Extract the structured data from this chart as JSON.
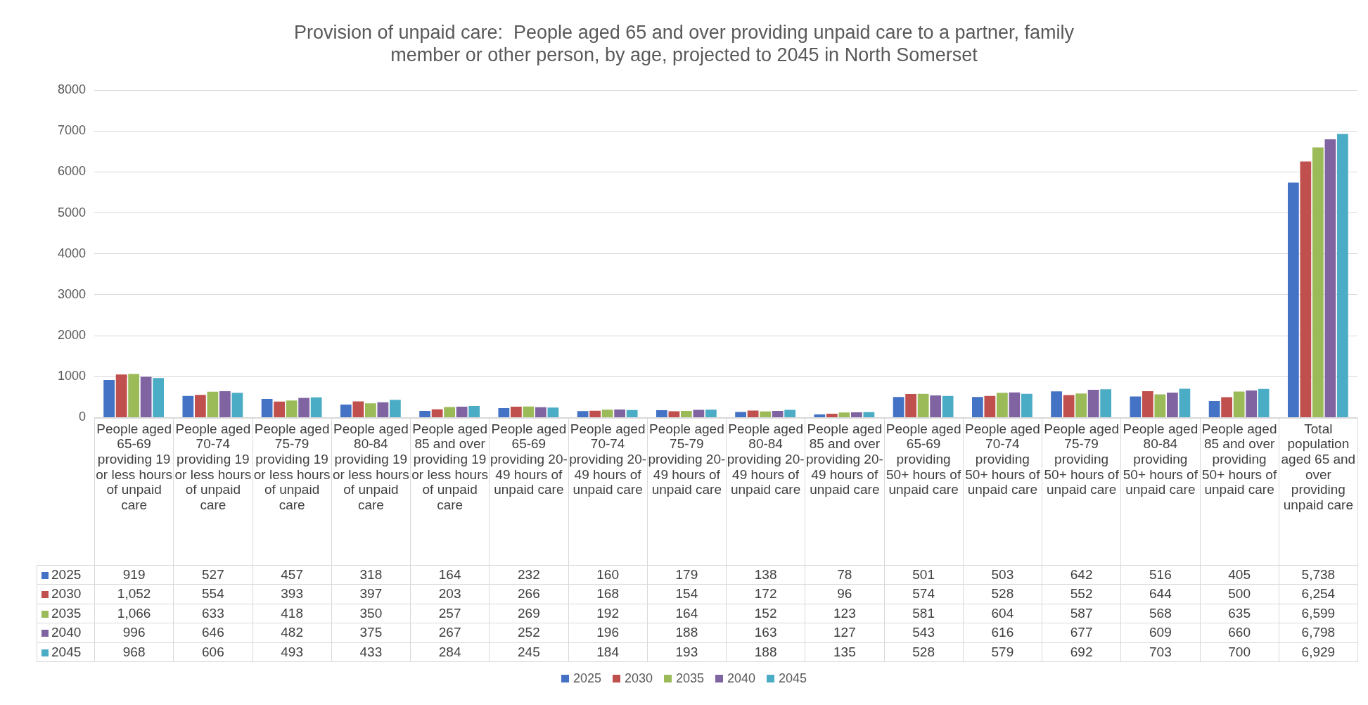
{
  "chart_data": {
    "type": "bar",
    "title": "Provision of unpaid care:  People aged 65 and over providing unpaid care to a partner, family member or other person, by age, projected to 2045 in North Somerset",
    "categories": [
      "People aged 65-69 providing 19 or less hours of unpaid care",
      "People aged 70-74 providing 19 or less hours of unpaid care",
      "People aged 75-79 providing 19 or less hours of unpaid care",
      "People aged 80-84 providing 19 or less hours of unpaid care",
      "People aged 85 and over providing 19 or less hours of unpaid care",
      "People aged 65-69 providing 20-49 hours of unpaid care",
      "People aged 70-74 providing 20-49 hours of unpaid care",
      "People aged 75-79 providing 20-49 hours of unpaid care",
      "People aged 80-84 providing 20-49 hours of unpaid care",
      "People aged 85 and over providing 20-49 hours of unpaid care",
      "People aged 65-69 providing 50+ hours of unpaid care",
      "People aged 70-74 providing 50+ hours of unpaid care",
      "People aged 75-79 providing 50+ hours of unpaid care",
      "People aged 80-84 providing 50+ hours of unpaid care",
      "People aged 85 and over providing 50+ hours of unpaid care",
      "Total population aged 65 and over providing unpaid care"
    ],
    "series": [
      {
        "name": "2025",
        "color": "#4472c4",
        "values": [
          919,
          527,
          457,
          318,
          164,
          232,
          160,
          179,
          138,
          78,
          501,
          503,
          642,
          516,
          405,
          5738
        ],
        "value_labels": [
          "919",
          "527",
          "457",
          "318",
          "164",
          "232",
          "160",
          "179",
          "138",
          "78",
          "501",
          "503",
          "642",
          "516",
          "405",
          "5,738"
        ]
      },
      {
        "name": "2030",
        "color": "#c0504d",
        "values": [
          1052,
          554,
          393,
          397,
          203,
          266,
          168,
          154,
          172,
          96,
          574,
          528,
          552,
          644,
          500,
          6254
        ],
        "value_labels": [
          "1,052",
          "554",
          "393",
          "397",
          "203",
          "266",
          "168",
          "154",
          "172",
          "96",
          "574",
          "528",
          "552",
          "644",
          "500",
          "6,254"
        ]
      },
      {
        "name": "2035",
        "color": "#9bbb59",
        "values": [
          1066,
          633,
          418,
          350,
          257,
          269,
          192,
          164,
          152,
          123,
          581,
          604,
          587,
          568,
          635,
          6599
        ],
        "value_labels": [
          "1,066",
          "633",
          "418",
          "350",
          "257",
          "269",
          "192",
          "164",
          "152",
          "123",
          "581",
          "604",
          "587",
          "568",
          "635",
          "6,599"
        ]
      },
      {
        "name": "2040",
        "color": "#8064a2",
        "values": [
          996,
          646,
          482,
          375,
          267,
          252,
          196,
          188,
          163,
          127,
          543,
          616,
          677,
          609,
          660,
          6798
        ],
        "value_labels": [
          "996",
          "646",
          "482",
          "375",
          "267",
          "252",
          "196",
          "188",
          "163",
          "127",
          "543",
          "616",
          "677",
          "609",
          "660",
          "6,798"
        ]
      },
      {
        "name": "2045",
        "color": "#4bacc6",
        "values": [
          968,
          606,
          493,
          433,
          284,
          245,
          184,
          193,
          188,
          135,
          528,
          579,
          692,
          703,
          700,
          6929
        ],
        "value_labels": [
          "968",
          "606",
          "493",
          "433",
          "284",
          "245",
          "184",
          "193",
          "188",
          "135",
          "528",
          "579",
          "692",
          "703",
          "700",
          "6,929"
        ]
      }
    ],
    "ylim": [
      0,
      8000
    ],
    "yticks": [
      0,
      1000,
      2000,
      3000,
      4000,
      5000,
      6000,
      7000,
      8000
    ],
    "grid": "y",
    "legend": "bottom"
  }
}
